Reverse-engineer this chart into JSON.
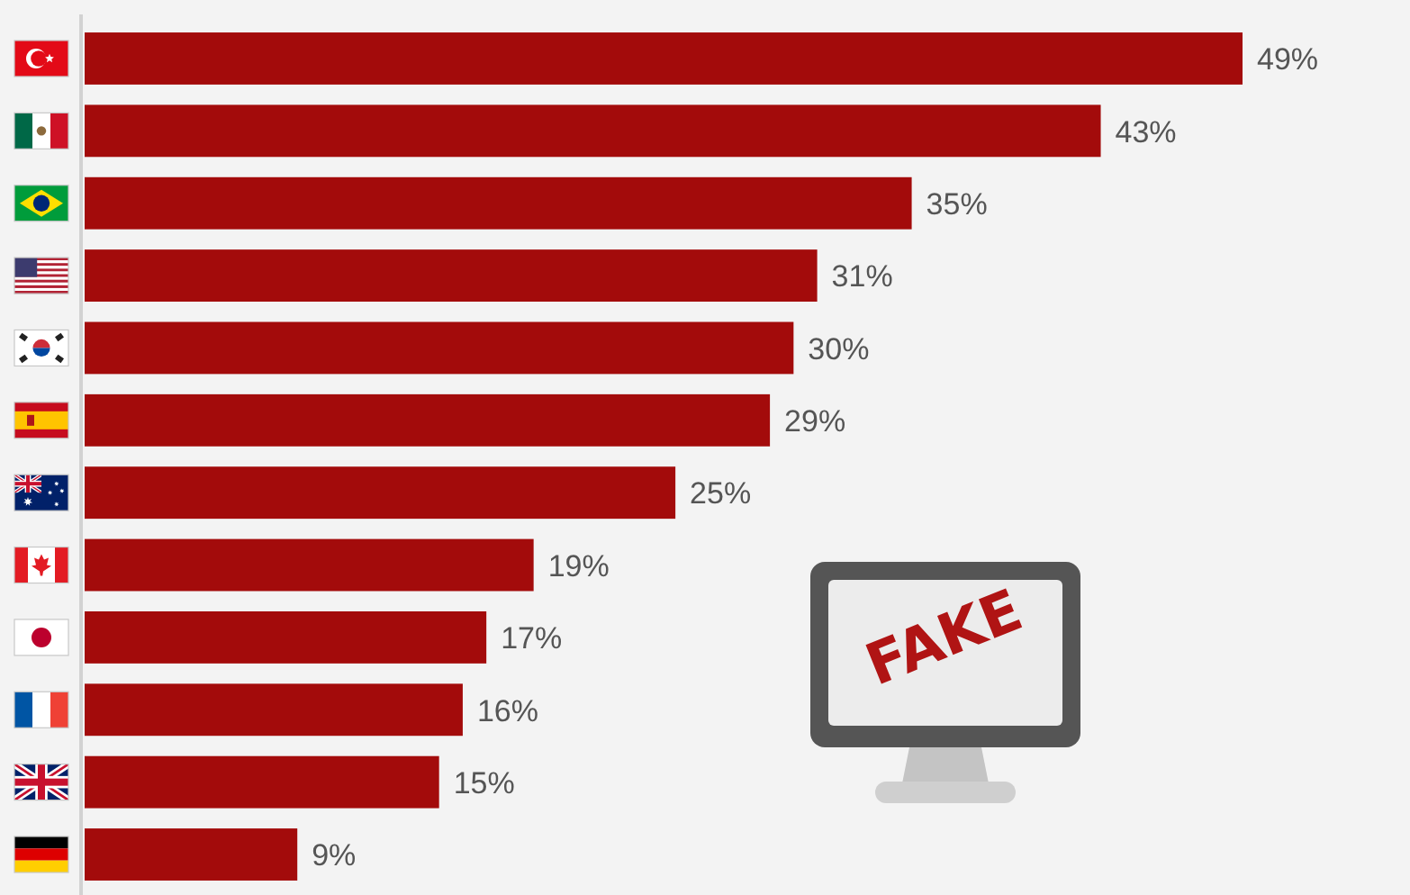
{
  "chart_data": {
    "type": "bar",
    "orientation": "horizontal",
    "categories": [
      null,
      null,
      null,
      null,
      null,
      null,
      null,
      null,
      null,
      null,
      null,
      null
    ],
    "values": [
      49,
      43,
      35,
      31,
      30,
      29,
      25,
      19,
      17,
      16,
      15,
      9
    ],
    "color": "#a30b0b",
    "value_labels": [
      "49%",
      "43%",
      "35%",
      "31%",
      "30%",
      "29%",
      "25%",
      "19%",
      "17%",
      "16%",
      "15%",
      "9%"
    ],
    "annotations": [
      "FAKE"
    ]
  }
}
